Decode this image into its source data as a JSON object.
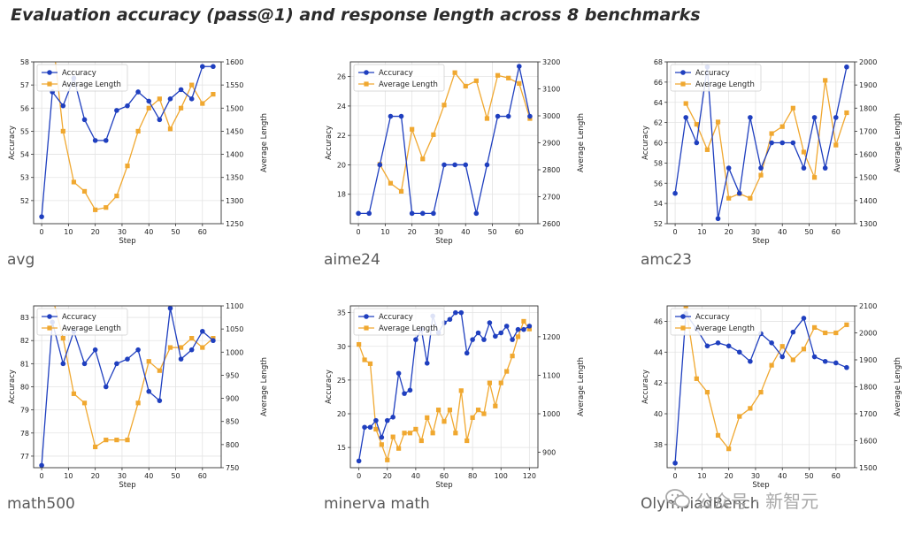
{
  "title": "Evaluation accuracy (pass@1) and response length across 8 benchmarks",
  "watermark": {
    "text": "公众号 · 新智元",
    "icon": "wechat-icon"
  },
  "colors": {
    "accuracy": "#1f3fbf",
    "length": "#f0a830",
    "grid": "#e3e3e3"
  },
  "chart_data": [
    {
      "type": "line",
      "caption": "avg",
      "xlabel": "Step",
      "ylabel": "Accuracy",
      "y2label": "Average Length",
      "xlim": [
        -3,
        67
      ],
      "xticks": [
        0,
        10,
        20,
        30,
        40,
        50,
        60
      ],
      "ylim": [
        51,
        58
      ],
      "yticks": [
        52,
        53,
        54,
        55,
        56,
        57,
        58
      ],
      "y2lim": [
        1250,
        1600
      ],
      "y2ticks": [
        1250,
        1300,
        1350,
        1400,
        1450,
        1500,
        1550,
        1600
      ],
      "legend": "upper-left",
      "series": [
        {
          "name": "Accuracy",
          "axis": "left",
          "x": [
            0,
            4,
            8,
            12,
            16,
            20,
            24,
            28,
            32,
            36,
            40,
            44,
            48,
            52,
            56,
            60,
            64
          ],
          "y": [
            51.3,
            56.7,
            56.1,
            57.3,
            55.5,
            54.6,
            54.6,
            55.9,
            56.1,
            56.7,
            56.3,
            55.5,
            56.4,
            56.8,
            56.4,
            57.8,
            57.8
          ]
        },
        {
          "name": "Average Length",
          "axis": "right",
          "x": [
            4,
            8,
            12,
            16,
            20,
            24,
            28,
            32,
            36,
            40,
            44,
            48,
            52,
            56,
            60,
            64
          ],
          "y": [
            1660,
            1450,
            1340,
            1320,
            1280,
            1285,
            1310,
            1375,
            1450,
            1500,
            1520,
            1455,
            1500,
            1550,
            1510,
            1530
          ]
        }
      ]
    },
    {
      "type": "line",
      "caption": "aime24",
      "xlabel": "Step",
      "ylabel": "Accuracy",
      "y2label": "Average Length",
      "xlim": [
        -3,
        67
      ],
      "xticks": [
        0,
        10,
        20,
        30,
        40,
        50,
        60
      ],
      "ylim": [
        16,
        27
      ],
      "yticks": [
        18,
        20,
        22,
        24,
        26
      ],
      "y2lim": [
        2600,
        3200
      ],
      "y2ticks": [
        2600,
        2700,
        2800,
        2900,
        3000,
        3100,
        3200
      ],
      "legend": "upper-left",
      "series": [
        {
          "name": "Accuracy",
          "axis": "left",
          "x": [
            0,
            4,
            8,
            12,
            16,
            20,
            24,
            28,
            32,
            36,
            40,
            44,
            48,
            52,
            56,
            60,
            64
          ],
          "y": [
            16.7,
            16.7,
            20.0,
            23.3,
            23.3,
            16.7,
            16.7,
            16.7,
            20.0,
            20.0,
            20.0,
            16.7,
            20.0,
            23.3,
            23.3,
            26.7,
            23.3
          ]
        },
        {
          "name": "Average Length",
          "axis": "right",
          "x": [
            8,
            12,
            16,
            20,
            24,
            28,
            32,
            36,
            40,
            44,
            48,
            52,
            56,
            60,
            64
          ],
          "y": [
            2820,
            2750,
            2720,
            2950,
            2840,
            2930,
            3040,
            3160,
            3110,
            3130,
            2990,
            3150,
            3140,
            3120,
            2990
          ]
        }
      ]
    },
    {
      "type": "line",
      "caption": "amc23",
      "xlabel": "Step",
      "ylabel": "Accuracy",
      "y2label": "Average Length",
      "xlim": [
        -3,
        67
      ],
      "xticks": [
        0,
        10,
        20,
        30,
        40,
        50,
        60
      ],
      "ylim": [
        52,
        68
      ],
      "yticks": [
        52,
        54,
        56,
        58,
        60,
        62,
        64,
        66,
        68
      ],
      "y2lim": [
        1300,
        2000
      ],
      "y2ticks": [
        1300,
        1400,
        1500,
        1600,
        1700,
        1800,
        1900,
        2000
      ],
      "legend": "upper-left",
      "series": [
        {
          "name": "Accuracy",
          "axis": "left",
          "x": [
            0,
            4,
            8,
            12,
            16,
            20,
            24,
            28,
            32,
            36,
            40,
            44,
            48,
            52,
            56,
            60,
            64
          ],
          "y": [
            55.0,
            62.5,
            60.0,
            67.5,
            52.5,
            57.5,
            55.0,
            62.5,
            57.5,
            60.0,
            60.0,
            60.0,
            57.5,
            62.5,
            57.5,
            62.5,
            67.5
          ]
        },
        {
          "name": "Average Length",
          "axis": "right",
          "x": [
            4,
            8,
            12,
            16,
            20,
            24,
            28,
            32,
            36,
            40,
            44,
            48,
            52,
            56,
            60,
            64
          ],
          "y": [
            1820,
            1730,
            1620,
            1740,
            1410,
            1430,
            1410,
            1510,
            1690,
            1720,
            1800,
            1610,
            1500,
            1920,
            1640,
            1780
          ]
        }
      ]
    },
    {
      "type": "line",
      "caption": "math500",
      "xlabel": "Step",
      "ylabel": "Accuracy",
      "y2label": "Average Length",
      "xlim": [
        -3,
        67
      ],
      "xticks": [
        0,
        10,
        20,
        30,
        40,
        50,
        60
      ],
      "ylim": [
        76.5,
        83.5
      ],
      "yticks": [
        77,
        78,
        79,
        80,
        81,
        82,
        83
      ],
      "y2lim": [
        750,
        1100
      ],
      "y2ticks": [
        750,
        800,
        850,
        900,
        950,
        1000,
        1050,
        1100
      ],
      "legend": "upper-left",
      "series": [
        {
          "name": "Accuracy",
          "axis": "left",
          "x": [
            0,
            4,
            8,
            12,
            16,
            20,
            24,
            28,
            32,
            36,
            40,
            44,
            48,
            52,
            56,
            60,
            64
          ],
          "y": [
            76.6,
            82.8,
            81.0,
            82.4,
            81.0,
            81.6,
            80.0,
            81.0,
            81.2,
            81.6,
            79.8,
            79.4,
            83.4,
            81.2,
            81.6,
            82.4,
            82.0
          ]
        },
        {
          "name": "Average Length",
          "axis": "right",
          "x": [
            4,
            8,
            12,
            16,
            20,
            24,
            28,
            32,
            36,
            40,
            44,
            48,
            52,
            56,
            60,
            64
          ],
          "y": [
            1120,
            1030,
            910,
            890,
            795,
            810,
            810,
            810,
            890,
            980,
            960,
            1010,
            1010,
            1030,
            1010,
            1030
          ]
        }
      ]
    },
    {
      "type": "line",
      "caption": "minerva math",
      "xlabel": "Step",
      "ylabel": "Accuracy",
      "y2label": "Average Length",
      "xlim": [
        -6,
        126
      ],
      "xticks": [
        0,
        20,
        40,
        60,
        80,
        100,
        120
      ],
      "ylim": [
        12,
        36
      ],
      "yticks": [
        15,
        20,
        25,
        30,
        35
      ],
      "y2lim": [
        860,
        1280
      ],
      "y2ticks": [
        900,
        1000,
        1100,
        1200
      ],
      "legend": "upper-left",
      "series": [
        {
          "name": "Accuracy",
          "axis": "left",
          "x": [
            0,
            4,
            8,
            12,
            16,
            20,
            24,
            28,
            32,
            36,
            40,
            44,
            48,
            52,
            56,
            60,
            64,
            68,
            72,
            76,
            80,
            84,
            88,
            92,
            96,
            100,
            104,
            108,
            112,
            116,
            120
          ],
          "y": [
            13.0,
            18.0,
            18.0,
            19.0,
            16.5,
            19.0,
            19.5,
            26.0,
            23.0,
            23.5,
            31.0,
            32.5,
            27.5,
            34.5,
            32.0,
            33.5,
            34.0,
            35.0,
            35.0,
            29.0,
            31.0,
            32.0,
            31.0,
            33.5,
            31.5,
            32.0,
            33.0,
            31.0,
            32.5,
            32.5,
            33.0
          ]
        },
        {
          "name": "Average Length",
          "axis": "right",
          "x": [
            0,
            4,
            8,
            12,
            16,
            20,
            24,
            28,
            32,
            36,
            40,
            44,
            48,
            52,
            56,
            60,
            64,
            68,
            72,
            76,
            80,
            84,
            88,
            92,
            96,
            100,
            104,
            108,
            112,
            116,
            120
          ],
          "y": [
            1180,
            1140,
            1130,
            960,
            920,
            880,
            940,
            910,
            950,
            950,
            960,
            930,
            990,
            950,
            1010,
            980,
            1010,
            950,
            1060,
            930,
            990,
            1010,
            1000,
            1080,
            1020,
            1080,
            1110,
            1150,
            1200,
            1240,
            1220
          ]
        }
      ]
    },
    {
      "type": "line",
      "caption": "OlympiadBench",
      "xlabel": "Step",
      "ylabel": "Accuracy",
      "y2label": "Average Length",
      "xlim": [
        -3,
        67
      ],
      "xticks": [
        0,
        10,
        20,
        30,
        40,
        50,
        60
      ],
      "ylim": [
        36.5,
        47
      ],
      "yticks": [
        38,
        40,
        42,
        44,
        46
      ],
      "y2lim": [
        1500,
        2100
      ],
      "y2ticks": [
        1500,
        1600,
        1700,
        1800,
        1900,
        2000,
        2100
      ],
      "legend": "upper-left",
      "series": [
        {
          "name": "Accuracy",
          "axis": "left",
          "x": [
            0,
            4,
            8,
            12,
            16,
            20,
            24,
            28,
            32,
            36,
            40,
            44,
            48,
            52,
            56,
            60,
            64
          ],
          "y": [
            36.8,
            46.5,
            45.5,
            44.4,
            44.6,
            44.4,
            44.0,
            43.4,
            45.2,
            44.6,
            43.7,
            45.3,
            46.2,
            43.7,
            43.4,
            43.3,
            43.0
          ]
        },
        {
          "name": "Average Length",
          "axis": "right",
          "x": [
            4,
            8,
            12,
            16,
            20,
            24,
            28,
            32,
            36,
            40,
            44,
            48,
            52,
            56,
            60,
            64
          ],
          "y": [
            2100,
            1830,
            1780,
            1620,
            1570,
            1690,
            1720,
            1780,
            1880,
            1950,
            1900,
            1940,
            2020,
            2000,
            2000,
            2030
          ]
        }
      ]
    }
  ]
}
